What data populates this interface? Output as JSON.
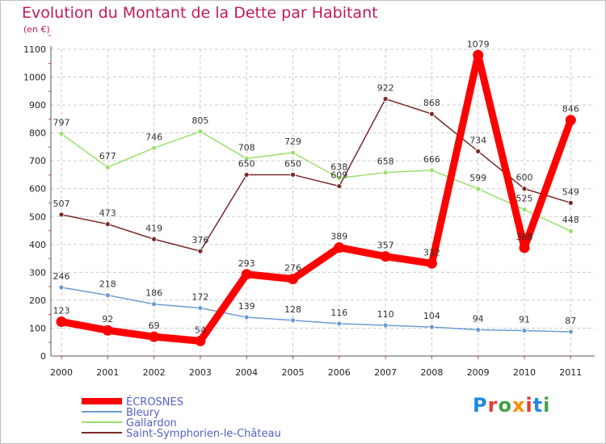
{
  "title": "Evolution du Montant de la Dette par Habitant",
  "subtitle": "(en €)",
  "logo": {
    "text": "Proxiti",
    "letter_colors": [
      "#1e88e5",
      "#e53935",
      "#43a047",
      "#fb8c00",
      "#e53935",
      "#1e88e5",
      "#43a047"
    ]
  },
  "chart_data": {
    "type": "line",
    "x": [
      "2000",
      "2001",
      "2002",
      "2003",
      "2004",
      "2005",
      "2006",
      "2007",
      "2008",
      "2009",
      "2010",
      "2011"
    ],
    "ylim": [
      0,
      1100
    ],
    "yticks": [
      "0",
      "100",
      "200",
      "300",
      "400",
      "500",
      "600",
      "700",
      "800",
      "900",
      "1000",
      "1100"
    ],
    "grid": true,
    "legend_position": "bottom",
    "series": [
      {
        "name": "ÉCROSNES",
        "color": "#ff0000",
        "values": [
          123,
          92,
          69,
          54,
          293,
          276,
          389,
          357,
          332,
          1079,
          388,
          846
        ],
        "labels": [
          "123",
          "92",
          "69",
          "54",
          "293",
          "276",
          "389",
          "357",
          "332",
          "1079",
          "388",
          "846"
        ]
      },
      {
        "name": "Bleury",
        "color": "#6b9bd1",
        "values": [
          246,
          218,
          186,
          172,
          139,
          128,
          116,
          110,
          104,
          94,
          91,
          87
        ],
        "labels": [
          "246",
          "218",
          "186",
          "172",
          "139",
          "128",
          "116",
          "110",
          "104",
          "94",
          "91",
          "87"
        ]
      },
      {
        "name": "Gallardon",
        "color": "#99e06a",
        "values": [
          797,
          677,
          746,
          805,
          708,
          729,
          638,
          658,
          666,
          599,
          525,
          448
        ],
        "labels": [
          "797",
          "677",
          "746",
          "805",
          "708",
          "729",
          "638",
          "658",
          "666",
          "599",
          "525",
          "448"
        ]
      },
      {
        "name": "Saint-Symphorien-le-Château",
        "color": "#7a2a2a",
        "values": [
          507,
          473,
          419,
          376,
          650,
          650,
          609,
          922,
          868,
          734,
          600,
          549
        ],
        "labels": [
          "507",
          "473",
          "419",
          "376",
          "650",
          "650",
          "609",
          "922",
          "868",
          "734",
          "600",
          "549"
        ]
      }
    ]
  }
}
